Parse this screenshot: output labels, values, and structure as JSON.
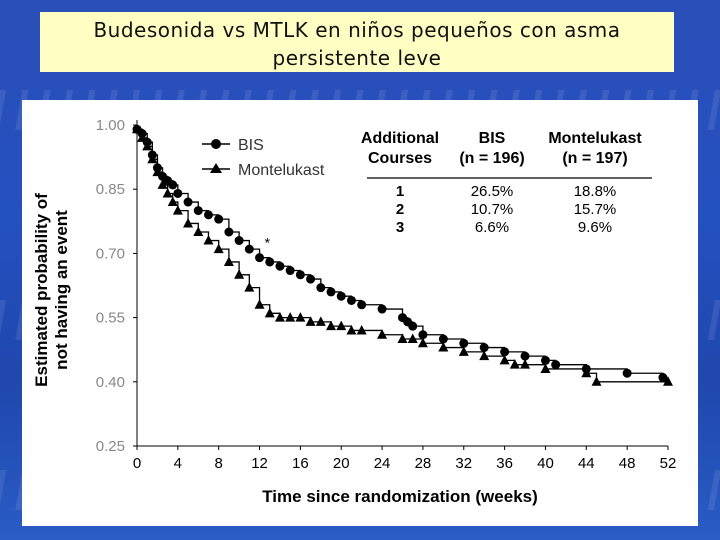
{
  "slide": {
    "title_line1": "Budesonida vs MTLK en niños pequeños con asma",
    "title_line2": "persistente leve"
  },
  "colors": {
    "title_bg": "#ffffc4",
    "background": "#2550c0",
    "series": "#000000"
  },
  "chart_data": {
    "type": "line",
    "xlabel": "Time since randomization (weeks)",
    "ylabel_line1": "Estimated probability of",
    "ylabel_line2": "not having an event",
    "xlim": [
      0,
      52
    ],
    "ylim": [
      0.25,
      1.0
    ],
    "x_ticks": [
      0,
      4,
      8,
      12,
      16,
      20,
      24,
      28,
      32,
      36,
      40,
      44,
      48,
      52
    ],
    "y_ticks": [
      "1.00",
      "0.85",
      "0.70",
      "0.55",
      "0.40",
      "0.25"
    ],
    "series": [
      {
        "name": "BIS",
        "marker": "circle",
        "x": [
          0,
          0.5,
          1,
          1.5,
          2,
          2.5,
          3,
          3.5,
          4,
          5,
          6,
          7,
          8,
          9,
          10,
          11,
          12,
          13,
          14,
          15,
          16,
          17,
          18,
          19,
          20,
          21,
          22,
          24,
          26,
          26.5,
          27,
          28,
          30,
          32,
          34,
          36,
          38,
          40,
          41,
          44,
          48,
          51.5
        ],
        "y": [
          0.99,
          0.98,
          0.96,
          0.93,
          0.9,
          0.88,
          0.87,
          0.86,
          0.84,
          0.82,
          0.8,
          0.79,
          0.78,
          0.75,
          0.73,
          0.71,
          0.69,
          0.68,
          0.67,
          0.66,
          0.65,
          0.64,
          0.62,
          0.61,
          0.6,
          0.59,
          0.58,
          0.57,
          0.55,
          0.54,
          0.53,
          0.51,
          0.5,
          0.49,
          0.48,
          0.47,
          0.46,
          0.45,
          0.44,
          0.43,
          0.42,
          0.41
        ]
      },
      {
        "name": "Montelukast",
        "marker": "triangle",
        "x": [
          0,
          0.5,
          1,
          1.5,
          2,
          2.5,
          3,
          3.5,
          4,
          5,
          6,
          7,
          8,
          9,
          10,
          11,
          12,
          13,
          14,
          15,
          16,
          17,
          18,
          19,
          20,
          21,
          22,
          24,
          26,
          27,
          28,
          30,
          32,
          34,
          36,
          37,
          38,
          40,
          44,
          45,
          52
        ],
        "y": [
          0.99,
          0.97,
          0.95,
          0.92,
          0.89,
          0.86,
          0.84,
          0.82,
          0.8,
          0.77,
          0.75,
          0.73,
          0.71,
          0.68,
          0.65,
          0.62,
          0.58,
          0.56,
          0.55,
          0.55,
          0.55,
          0.54,
          0.54,
          0.53,
          0.53,
          0.52,
          0.52,
          0.51,
          0.5,
          0.5,
          0.49,
          0.48,
          0.47,
          0.46,
          0.45,
          0.44,
          0.44,
          0.43,
          0.42,
          0.4,
          0.4
        ]
      }
    ],
    "annotation": "*",
    "table": {
      "headers": [
        {
          "lines": [
            "Additional",
            "Courses"
          ]
        },
        {
          "lines": [
            "BIS",
            "(n = 196)"
          ]
        },
        {
          "lines": [
            "Montelukast",
            "(n = 197)"
          ]
        }
      ],
      "rows": [
        [
          "1",
          "26.5%",
          "18.8%"
        ],
        [
          "2",
          "10.7%",
          "15.7%"
        ],
        [
          "3",
          "6.6%",
          "9.6%"
        ]
      ]
    }
  }
}
